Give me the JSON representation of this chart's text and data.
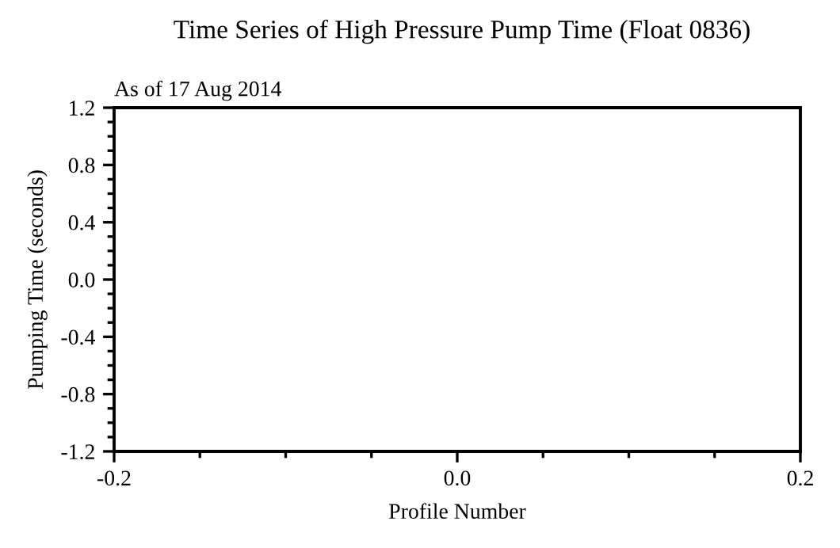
{
  "chart_data": {
    "type": "line",
    "title": "Time Series of High Pressure Pump Time (Float 0836)",
    "subtitle": "As of 17 Aug 2014",
    "xlabel": "Profile Number",
    "ylabel": "Pumping Time (seconds)",
    "xlim": [
      -0.2,
      0.2
    ],
    "xticks": [
      {
        "value": -0.2,
        "label": "-0.2"
      },
      {
        "value": 0,
        "label": "0.0"
      },
      {
        "value": 0.2,
        "label": "0.2"
      }
    ],
    "ylim": [
      -1.2,
      1.2
    ],
    "yticks": [
      {
        "value": -1.2,
        "label": "-1.2"
      },
      {
        "value": -0.8,
        "label": "-0.8"
      },
      {
        "value": -0.4,
        "label": "-0.4"
      },
      {
        "value": 0,
        "label": "0.0"
      },
      {
        "value": 0.4,
        "label": "0.4"
      },
      {
        "value": 0.8,
        "label": "0.8"
      },
      {
        "value": 1.2,
        "label": "1.2"
      }
    ],
    "grid": false,
    "legend": false
  }
}
